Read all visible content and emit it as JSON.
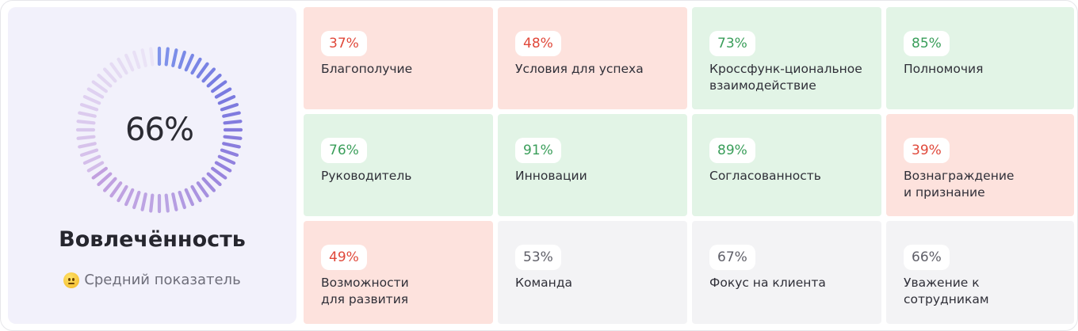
{
  "summary": {
    "value": "66%",
    "percent": 66,
    "title": "Вовлечённость",
    "status": "Средний показатель",
    "status_icon": "neutral-face-icon"
  },
  "colors": {
    "red_bg": "#fde2dd",
    "green_bg": "#e2f4e6",
    "gray_bg": "#f3f3f5",
    "red_text": "#e0483a",
    "green_text": "#3a9e5a",
    "ring_start": "#6f86e8",
    "ring_end": "#9a5cc9"
  },
  "tiles": [
    {
      "value": "37%",
      "label": "Благополучие",
      "tone": "red"
    },
    {
      "value": "48%",
      "label": "Условия для успеха",
      "tone": "red"
    },
    {
      "value": "73%",
      "label": "Кроссфунк-циональное\nвзаимодействие",
      "tone": "green"
    },
    {
      "value": "85%",
      "label": "Полномочия",
      "tone": "green"
    },
    {
      "value": "76%",
      "label": "Руководитель",
      "tone": "green"
    },
    {
      "value": "91%",
      "label": "Инновации",
      "tone": "green"
    },
    {
      "value": "89%",
      "label": "Согласованность",
      "tone": "green"
    },
    {
      "value": "39%",
      "label": "Вознаграждение\nи признание",
      "tone": "red"
    },
    {
      "value": "49%",
      "label": "Возможности\nдля развития",
      "tone": "red"
    },
    {
      "value": "53%",
      "label": "Команда",
      "tone": "gray"
    },
    {
      "value": "67%",
      "label": "Фокус на клиента",
      "tone": "gray"
    },
    {
      "value": "66%",
      "label": "Уважение к\nсотрудникам",
      "tone": "gray"
    }
  ]
}
